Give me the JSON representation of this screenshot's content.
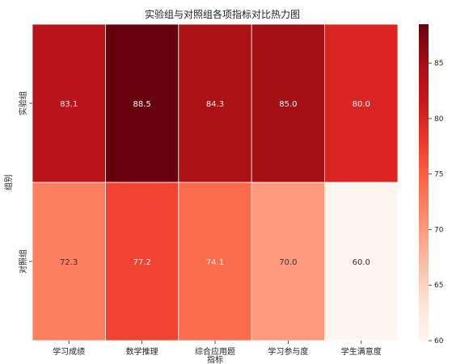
{
  "chart_data": {
    "type": "heatmap",
    "title": "实验组与对照组各项指标对比热力图",
    "xlabel": "指标",
    "ylabel": "组别",
    "x_categories": [
      "学习成绩",
      "数学推理",
      "综合应用题",
      "学习参与度",
      "学生满意度"
    ],
    "y_categories": [
      "实验组",
      "对照组"
    ],
    "values": [
      [
        83.1,
        88.5,
        84.3,
        85.0,
        80.0
      ],
      [
        72.3,
        77.2,
        74.1,
        70.0,
        60.0
      ]
    ],
    "value_labels": [
      [
        "83.1",
        "88.5",
        "84.3",
        "85.0",
        "80.0"
      ],
      [
        "72.3",
        "77.2",
        "74.1",
        "70.0",
        "60.0"
      ]
    ],
    "colorbar": {
      "min": 60,
      "max": 88.5,
      "ticks": [
        60,
        65,
        70,
        75,
        80,
        85
      ]
    },
    "colormap": "Reds"
  }
}
